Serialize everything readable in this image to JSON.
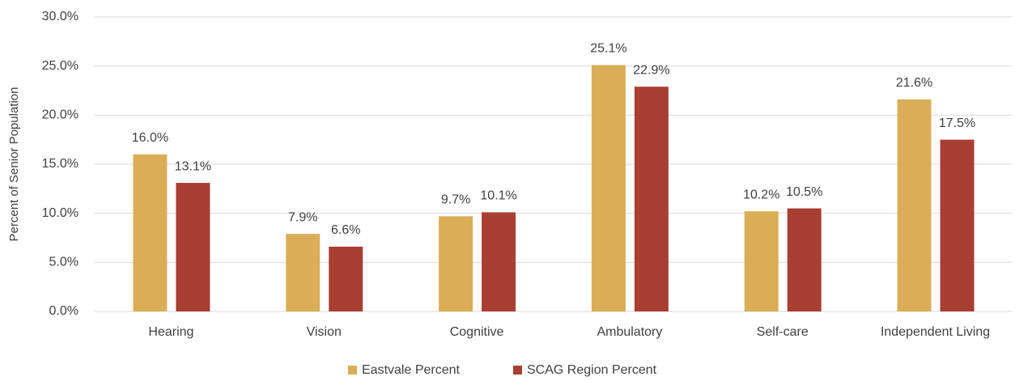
{
  "chart_data": {
    "type": "bar",
    "y_axis_label": "Percent of Senior Population",
    "categories": [
      "Hearing",
      "Vision",
      "Cognitive",
      "Ambulatory",
      "Self-care",
      "Independent Living"
    ],
    "series": [
      {
        "name": "Eastvale Percent",
        "color": "#D9AE57",
        "values": [
          16.0,
          7.9,
          9.7,
          25.1,
          10.2,
          21.6
        ],
        "value_labels": [
          "16.0%",
          "7.9%",
          "9.7%",
          "25.1%",
          "10.2%",
          "21.6%"
        ]
      },
      {
        "name": "SCAG Region Percent",
        "color": "#A93E32",
        "values": [
          13.1,
          6.6,
          10.1,
          22.9,
          10.5,
          17.5
        ],
        "value_labels": [
          "13.1%",
          "6.6%",
          "10.1%",
          "22.9%",
          "10.5%",
          "17.5%"
        ]
      }
    ],
    "ylim": [
      0,
      30
    ],
    "yticks": [
      {
        "value": 0,
        "label": "0.0%"
      },
      {
        "value": 5,
        "label": "5.0%"
      },
      {
        "value": 10,
        "label": "10.0%"
      },
      {
        "value": 15,
        "label": "15.0%"
      },
      {
        "value": 20,
        "label": "20.0%"
      },
      {
        "value": 25,
        "label": "25.0%"
      },
      {
        "value": 30,
        "label": "30.0%"
      }
    ],
    "grid": true,
    "legend": "bottom"
  }
}
